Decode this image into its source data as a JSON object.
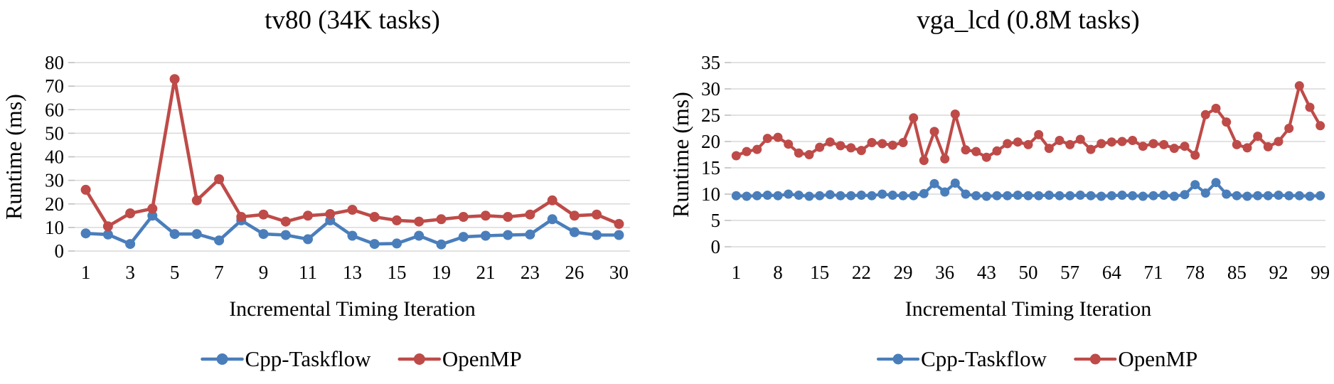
{
  "page": {
    "background": "#ffffff"
  },
  "colors": {
    "cpp_taskflow": "#4A7EBB",
    "openmp": "#BE4B48",
    "gridline": "#D9D9D9",
    "tick_mark": "#BFBFBF",
    "text": "#000000"
  },
  "chart_data": [
    {
      "id": "tv80",
      "type": "line",
      "title": "tv80 (34K tasks)",
      "xlabel": "Incremental Timing Iteration",
      "ylabel": "Runtime (ms)",
      "ylim": [
        0,
        80
      ],
      "ytick_step": 10,
      "ytick_labels": [
        "0",
        "10",
        "20",
        "30",
        "40",
        "50",
        "60",
        "70",
        "80"
      ],
      "grid": "horizontal",
      "legend_position": "bottom",
      "x_tick_labels": [
        "1",
        "3",
        "5",
        "7",
        "9",
        "11",
        "13",
        "15",
        "19",
        "21",
        "23",
        "26",
        "30"
      ],
      "label_every_n_points": 2,
      "legend": [
        "Cpp-Taskflow",
        "OpenMP"
      ],
      "series": [
        {
          "name": "Cpp-Taskflow",
          "color": "#4A7EBB",
          "values": [
            7.5,
            7.0,
            3.0,
            15.0,
            7.2,
            7.2,
            4.5,
            13.0,
            7.2,
            6.8,
            5.0,
            13.0,
            6.5,
            3.0,
            3.2,
            6.5,
            2.8,
            6.0,
            6.5,
            6.8,
            7.0,
            13.5,
            8.0,
            6.8,
            6.8
          ]
        },
        {
          "name": "OpenMP",
          "color": "#BE4B48",
          "values": [
            26.0,
            10.5,
            16.0,
            18.0,
            73.0,
            21.5,
            30.5,
            14.5,
            15.5,
            12.5,
            15.0,
            15.7,
            17.5,
            14.5,
            13.0,
            12.5,
            13.5,
            14.5,
            15.0,
            14.5,
            15.5,
            21.5,
            15.0,
            15.5,
            11.5
          ]
        }
      ]
    },
    {
      "id": "vga_lcd",
      "type": "line",
      "title": "vga_lcd (0.8M tasks)",
      "xlabel": "Incremental Timing Iteration",
      "ylabel": "Runtime (ms)",
      "ylim": [
        0,
        35
      ],
      "ytick_step": 5,
      "ytick_labels": [
        "0",
        "5",
        "10",
        "15",
        "20",
        "25",
        "30",
        "35"
      ],
      "grid": "horizontal",
      "legend_position": "bottom",
      "x_tick_labels": [
        "1",
        "8",
        "15",
        "22",
        "29",
        "36",
        "43",
        "50",
        "57",
        "64",
        "71",
        "78",
        "85",
        "92",
        "99"
      ],
      "label_every_n_points": 4,
      "legend": [
        "Cpp-Taskflow",
        "OpenMP"
      ],
      "series": [
        {
          "name": "Cpp-Taskflow",
          "color": "#4A7EBB",
          "values": [
            9.7,
            9.6,
            9.7,
            9.8,
            9.7,
            10.0,
            9.8,
            9.6,
            9.7,
            9.9,
            9.7,
            9.7,
            9.8,
            9.7,
            10.0,
            9.8,
            9.7,
            9.7,
            10.1,
            12.0,
            10.4,
            12.1,
            10.0,
            9.7,
            9.6,
            9.7,
            9.7,
            9.8,
            9.7,
            9.7,
            9.8,
            9.7,
            9.7,
            9.8,
            9.7,
            9.6,
            9.7,
            9.8,
            9.7,
            9.6,
            9.7,
            9.8,
            9.6,
            9.9,
            11.8,
            10.2,
            12.2,
            10.0,
            9.7,
            9.6,
            9.7,
            9.7,
            9.8,
            9.7,
            9.7,
            9.6,
            9.7
          ]
        },
        {
          "name": "OpenMP",
          "color": "#BE4B48",
          "values": [
            17.3,
            18.1,
            18.5,
            20.6,
            20.8,
            19.5,
            17.8,
            17.5,
            18.9,
            19.9,
            19.2,
            18.8,
            18.3,
            19.8,
            19.6,
            19.3,
            19.8,
            24.5,
            16.4,
            21.9,
            16.7,
            25.2,
            18.4,
            18.1,
            17.0,
            18.2,
            19.6,
            19.9,
            19.4,
            21.3,
            18.7,
            20.2,
            19.4,
            20.4,
            18.5,
            19.6,
            19.9,
            20.0,
            20.2,
            19.1,
            19.6,
            19.4,
            18.7,
            19.1,
            17.4,
            25.1,
            26.3,
            23.7,
            19.4,
            18.8,
            21.0,
            19.0,
            20.0,
            22.5,
            30.6,
            26.5,
            23.0
          ]
        }
      ]
    }
  ]
}
